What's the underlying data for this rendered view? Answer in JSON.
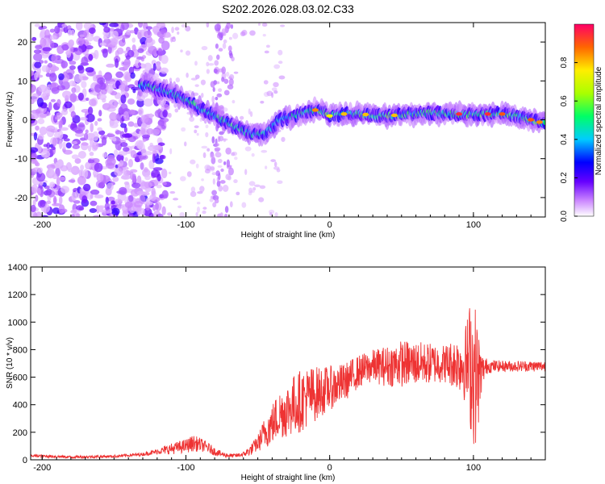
{
  "page": {
    "title": "S202.2026.028.03.02.C33",
    "colors": {
      "axis": "#000000",
      "snr_line": "#ee3333",
      "background": "#ffffff"
    }
  },
  "chart_data": [
    {
      "type": "heatmap",
      "name": "spectrogram",
      "title": "S202.2026.028.03.02.C33",
      "xlabel": "Height of straight line (km)",
      "ylabel": "Frequency (Hz)",
      "xlim": [
        -208,
        150
      ],
      "ylim": [
        -25,
        25
      ],
      "xticks": [
        -200,
        -100,
        0,
        100
      ],
      "yticks": [
        -20,
        -10,
        0,
        10,
        20
      ],
      "ridge": {
        "x": [
          -130,
          -120,
          -110,
          -100,
          -90,
          -80,
          -70,
          -60,
          -50,
          -45,
          -40,
          -35,
          -30,
          -20,
          -10,
          -5,
          0,
          10,
          20,
          30,
          40,
          50,
          60,
          70,
          80,
          90,
          100,
          110,
          120,
          130,
          140,
          150
        ],
        "freq": [
          9,
          8,
          7,
          5,
          3,
          1,
          -1,
          -3,
          -4,
          -3.5,
          -2,
          0,
          0.5,
          1.5,
          2.5,
          2.2,
          1,
          1.5,
          1.5,
          1.2,
          1,
          1.3,
          1.5,
          1.8,
          1.5,
          1.5,
          1.2,
          1.5,
          1.5,
          1,
          0,
          -1
        ]
      },
      "colorbar": {
        "label": "Normalized spectral amplitude",
        "ticks": [
          "0.0",
          "0.2",
          "0.4",
          "0.6",
          "0.8"
        ],
        "range": [
          0,
          1
        ]
      }
    },
    {
      "type": "line",
      "name": "snr",
      "xlabel": "Height of straight line (km)",
      "ylabel": "SNR (10 * v/v)",
      "xlim": [
        -208,
        150
      ],
      "ylim": [
        0,
        1400
      ],
      "xticks": [
        -200,
        -100,
        0,
        100
      ],
      "yticks": [
        0,
        200,
        400,
        600,
        800,
        1000,
        1200,
        1400
      ],
      "envelope": {
        "x": [
          -208,
          -180,
          -150,
          -130,
          -120,
          -110,
          -100,
          -95,
          -90,
          -85,
          -80,
          -75,
          -70,
          -65,
          -60,
          -55,
          -50,
          -45,
          -40,
          -35,
          -30,
          -25,
          -20,
          -15,
          -10,
          -5,
          0,
          5,
          10,
          15,
          20,
          25,
          30,
          40,
          50,
          60,
          70,
          80,
          90,
          95,
          98,
          100,
          102,
          104,
          106,
          110,
          120,
          130,
          140,
          150
        ],
        "mean": [
          30,
          20,
          25,
          40,
          60,
          80,
          100,
          120,
          110,
          90,
          60,
          40,
          30,
          30,
          40,
          70,
          120,
          200,
          260,
          330,
          360,
          400,
          430,
          460,
          480,
          500,
          520,
          540,
          560,
          600,
          640,
          660,
          680,
          680,
          700,
          700,
          700,
          700,
          700,
          700,
          700,
          650,
          600,
          600,
          650,
          680,
          680,
          680,
          680,
          680
        ],
        "amp": [
          10,
          10,
          10,
          12,
          20,
          40,
          50,
          60,
          50,
          40,
          30,
          20,
          15,
          15,
          20,
          40,
          60,
          120,
          150,
          180,
          200,
          220,
          230,
          220,
          200,
          180,
          160,
          150,
          140,
          130,
          120,
          120,
          120,
          150,
          170,
          160,
          150,
          140,
          200,
          300,
          500,
          550,
          500,
          300,
          120,
          50,
          40,
          40,
          40,
          40
        ]
      }
    }
  ]
}
